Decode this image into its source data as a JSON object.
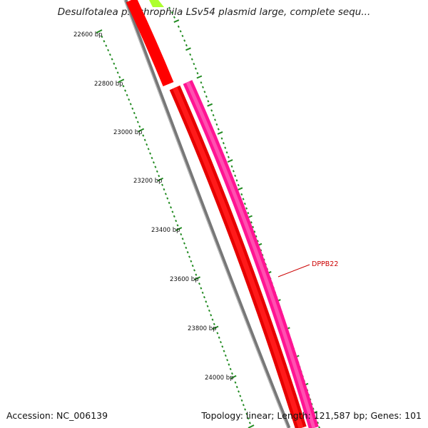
{
  "title": "Desulfotalea psychrophila LSv54 plasmid large, complete sequ...",
  "footer": {
    "accession": "Accession: NC_006139",
    "summary": "Topology: linear; Length: 121,587 bp; Genes: 101"
  },
  "ruler": {
    "labels": [
      "22600 bp",
      "22800 bp",
      "23000 bp",
      "23200 bp",
      "23400 bp",
      "23600 bp",
      "23800 bp",
      "24000 bp"
    ],
    "tick_color": "#228b22"
  },
  "genes": [
    {
      "id": "DPPB22",
      "label": "DPPB22",
      "color": "#ff1493",
      "strand": "forward"
    }
  ],
  "colors": {
    "backbone": "#777777",
    "reverse_gene": "#ff0000",
    "forward_gene": "#ff1493",
    "upstream_gene": "#adff2f",
    "label": "#cc0000"
  }
}
